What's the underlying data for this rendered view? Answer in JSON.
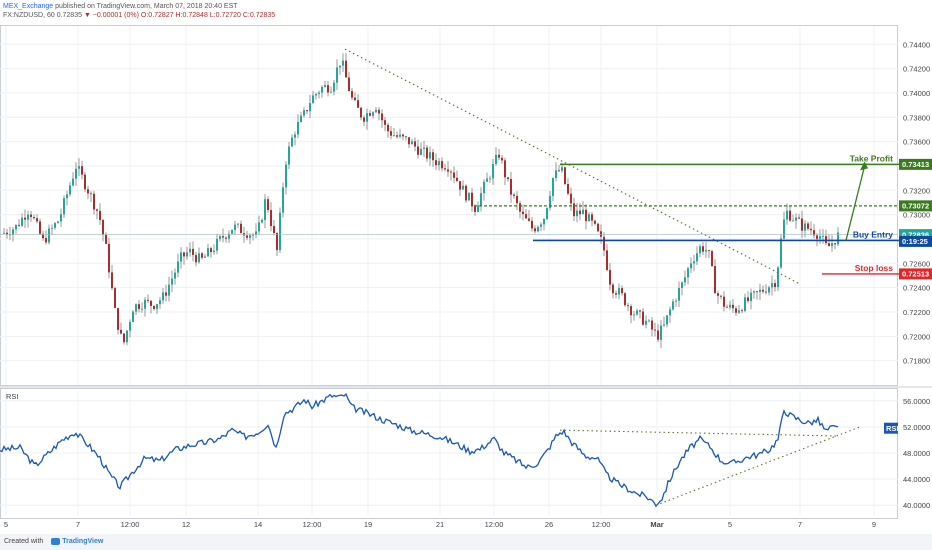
{
  "header": {
    "author": "MEX_Exchange",
    "published_text": "published on TradingView.com, March 07, 2018 20:40 EST",
    "symbol_line_prefix": "FX:NZDUSD, 60",
    "last": "0.72835",
    "change": "▼ −0.00001 (0%)",
    "ohlc": "O:0.72827 H:0.72848 L:0.72720 C:0.72835"
  },
  "footer": {
    "created_with": "Created with",
    "brand": "TradingView"
  },
  "colors": {
    "up": "#26a69a",
    "down": "#a82e2e",
    "wick": "#555555",
    "trendline": "#5a7a2a",
    "take_profit": "#3b7a1f",
    "resistance": "#3b7a1f",
    "entry": "#0f4a9e",
    "stop": "#e0272c",
    "rsi": "#1856b8",
    "grid": "#eef0f3"
  },
  "chart_data": [
    {
      "type": "candlestick",
      "title": "FX:NZDUSD, 60",
      "ylim": [
        0.716,
        0.7455
      ],
      "y_ticks": [
        "0.74400",
        "0.74200",
        "0.74000",
        "0.73800",
        "0.73600",
        "0.73400",
        "0.73200",
        "0.73000",
        "0.72800",
        "0.72600",
        "0.72400",
        "0.72200",
        "0.72000",
        "0.71800"
      ],
      "x_ticks": [
        "5",
        "7",
        "12:00",
        "12",
        "14",
        "12:00",
        "19",
        "21",
        "12:00",
        "26",
        "12:00",
        "Mar",
        "5",
        "7",
        "9"
      ],
      "x_positions": [
        6,
        78,
        130,
        186,
        258,
        312,
        368,
        440,
        494,
        549,
        601,
        657,
        730,
        800,
        874
      ],
      "price_path": [
        [
          0,
          0.7284
        ],
        [
          15,
          0.729
        ],
        [
          28,
          0.7305
        ],
        [
          42,
          0.7278
        ],
        [
          58,
          0.7296
        ],
        [
          75,
          0.734
        ],
        [
          85,
          0.7324
        ],
        [
          98,
          0.73
        ],
        [
          106,
          0.7268
        ],
        [
          114,
          0.722
        ],
        [
          122,
          0.7192
        ],
        [
          132,
          0.7224
        ],
        [
          142,
          0.7228
        ],
        [
          152,
          0.7226
        ],
        [
          162,
          0.7232
        ],
        [
          170,
          0.7246
        ],
        [
          180,
          0.7264
        ],
        [
          188,
          0.727
        ],
        [
          200,
          0.7262
        ],
        [
          212,
          0.7272
        ],
        [
          222,
          0.7282
        ],
        [
          232,
          0.729
        ],
        [
          245,
          0.7286
        ],
        [
          256,
          0.7282
        ],
        [
          265,
          0.7314
        ],
        [
          276,
          0.727
        ],
        [
          284,
          0.7342
        ],
        [
          293,
          0.7368
        ],
        [
          303,
          0.7382
        ],
        [
          310,
          0.7395
        ],
        [
          320,
          0.7404
        ],
        [
          330,
          0.7406
        ],
        [
          340,
          0.7428
        ],
        [
          345,
          0.7412
        ],
        [
          352,
          0.7392
        ],
        [
          362,
          0.738
        ],
        [
          375,
          0.739
        ],
        [
          385,
          0.737
        ],
        [
          396,
          0.7364
        ],
        [
          408,
          0.736
        ],
        [
          420,
          0.7352
        ],
        [
          435,
          0.7344
        ],
        [
          448,
          0.734
        ],
        [
          462,
          0.732
        ],
        [
          474,
          0.7306
        ],
        [
          486,
          0.7328
        ],
        [
          498,
          0.735
        ],
        [
          508,
          0.7322
        ],
        [
          520,
          0.73
        ],
        [
          532,
          0.7288
        ],
        [
          543,
          0.7298
        ],
        [
          552,
          0.733
        ],
        [
          560,
          0.7338
        ],
        [
          572,
          0.73
        ],
        [
          582,
          0.7302
        ],
        [
          593,
          0.729
        ],
        [
          602,
          0.7275
        ],
        [
          610,
          0.7242
        ],
        [
          620,
          0.7234
        ],
        [
          632,
          0.722
        ],
        [
          645,
          0.7212
        ],
        [
          656,
          0.72
        ],
        [
          663,
          0.7208
        ],
        [
          672,
          0.7228
        ],
        [
          682,
          0.7244
        ],
        [
          690,
          0.7262
        ],
        [
          700,
          0.7274
        ],
        [
          707,
          0.727
        ],
        [
          715,
          0.7236
        ],
        [
          725,
          0.7224
        ],
        [
          735,
          0.7222
        ],
        [
          745,
          0.7228
        ],
        [
          755,
          0.7234
        ],
        [
          765,
          0.724
        ],
        [
          775,
          0.7246
        ],
        [
          782,
          0.7292
        ],
        [
          786,
          0.7302
        ],
        [
          794,
          0.7296
        ],
        [
          802,
          0.729
        ],
        [
          810,
          0.7288
        ],
        [
          818,
          0.7284
        ],
        [
          826,
          0.7272
        ],
        [
          832,
          0.7278
        ],
        [
          838,
          0.72835
        ]
      ],
      "series": [
        {
          "name": "trendline",
          "points": [
            [
              345,
              0.7436
            ],
            [
              800,
              0.7243
            ]
          ]
        },
        {
          "name": "take_profit",
          "value": 0.73413,
          "x_range": [
            560,
            900
          ]
        },
        {
          "name": "resistance",
          "value": 0.73072,
          "x_range": [
            474,
            900
          ]
        },
        {
          "name": "buy_entry",
          "value": 0.72788,
          "x_range": [
            533,
            900
          ]
        },
        {
          "name": "stop_loss",
          "value": 0.72513,
          "x_range": [
            822,
            900
          ]
        },
        {
          "name": "projection",
          "points": [
            [
              846,
              0.72788
            ],
            [
              864,
              0.73413
            ]
          ]
        }
      ],
      "price_tags": [
        {
          "value": 0.73413,
          "label": "0.73413",
          "color": "#3b7a1f"
        },
        {
          "value": 0.73072,
          "label": "0.73072",
          "color": "#3b7a1f"
        },
        {
          "value": 0.72836,
          "label": "0.72836",
          "color": "#26a69a"
        },
        {
          "value": 0.7278,
          "label": "0:19:25",
          "color": "#0f4a9e"
        },
        {
          "value": 0.72513,
          "label": "0.72513",
          "color": "#e0272c"
        }
      ],
      "annotations": [
        {
          "text": "Take Profit",
          "value": 0.73413,
          "color": "#3b7a1f"
        },
        {
          "text": "Buy Entry",
          "value": 0.72788,
          "color": "#0f4a9e"
        },
        {
          "text": "Stop loss",
          "value": 0.72513,
          "color": "#e0272c"
        }
      ]
    },
    {
      "type": "line",
      "name": "RSI",
      "ylim": [
        38.5,
        57.5
      ],
      "y_ticks": [
        "56.0000",
        "52.0000",
        "48.0000",
        "44.0000",
        "40.0000"
      ],
      "current": {
        "value": 51.8,
        "label": "RSI"
      },
      "rsi_path": [
        [
          0,
          48.5
        ],
        [
          20,
          48.8
        ],
        [
          35,
          46.0
        ],
        [
          50,
          48.2
        ],
        [
          62,
          50.0
        ],
        [
          75,
          51.2
        ],
        [
          88,
          49.3
        ],
        [
          100,
          47.2
        ],
        [
          110,
          44.6
        ],
        [
          120,
          42.8
        ],
        [
          132,
          45.0
        ],
        [
          145,
          47.2
        ],
        [
          160,
          46.8
        ],
        [
          175,
          48.5
        ],
        [
          190,
          49.2
        ],
        [
          205,
          49.6
        ],
        [
          220,
          50.2
        ],
        [
          232,
          51.5
        ],
        [
          245,
          50.5
        ],
        [
          258,
          51.2
        ],
        [
          268,
          52.5
        ],
        [
          276,
          48.8
        ],
        [
          284,
          54.0
        ],
        [
          295,
          55.0
        ],
        [
          305,
          56.2
        ],
        [
          312,
          55.1
        ],
        [
          322,
          56.0
        ],
        [
          332,
          56.8
        ],
        [
          340,
          56.5
        ],
        [
          345,
          57.0
        ],
        [
          352,
          55.0
        ],
        [
          362,
          54.4
        ],
        [
          372,
          53.8
        ],
        [
          384,
          53.0
        ],
        [
          396,
          52.4
        ],
        [
          410,
          51.5
        ],
        [
          425,
          51.0
        ],
        [
          440,
          50.5
        ],
        [
          455,
          49.5
        ],
        [
          470,
          48.3
        ],
        [
          480,
          48.6
        ],
        [
          494,
          50.2
        ],
        [
          504,
          48.0
        ],
        [
          515,
          47.0
        ],
        [
          527,
          45.8
        ],
        [
          538,
          46.5
        ],
        [
          548,
          48.5
        ],
        [
          556,
          50.6
        ],
        [
          563,
          51.4
        ],
        [
          572,
          49.6
        ],
        [
          585,
          47.6
        ],
        [
          597,
          47.2
        ],
        [
          607,
          44.6
        ],
        [
          617,
          43.4
        ],
        [
          627,
          42.6
        ],
        [
          637,
          41.8
        ],
        [
          647,
          41.3
        ],
        [
          656,
          40.2
        ],
        [
          662,
          41.1
        ],
        [
          670,
          44.0
        ],
        [
          680,
          46.8
        ],
        [
          690,
          48.8
        ],
        [
          700,
          50.1
        ],
        [
          710,
          49.0
        ],
        [
          720,
          47.0
        ],
        [
          730,
          46.3
        ],
        [
          740,
          46.9
        ],
        [
          750,
          47.5
        ],
        [
          760,
          47.8
        ],
        [
          770,
          48.6
        ],
        [
          778,
          50.1
        ],
        [
          784,
          54.6
        ],
        [
          790,
          53.8
        ],
        [
          798,
          53.2
        ],
        [
          808,
          52.6
        ],
        [
          818,
          53.0
        ],
        [
          826,
          51.4
        ],
        [
          832,
          51.9
        ],
        [
          838,
          51.8
        ]
      ],
      "series": [
        {
          "name": "upper_trendline",
          "points": [
            [
              560,
              51.5
            ],
            [
              838,
              50.6
            ]
          ]
        },
        {
          "name": "lower_trendline",
          "points": [
            [
              656,
              40.0
            ],
            [
              860,
              52.0
            ]
          ]
        }
      ]
    }
  ]
}
